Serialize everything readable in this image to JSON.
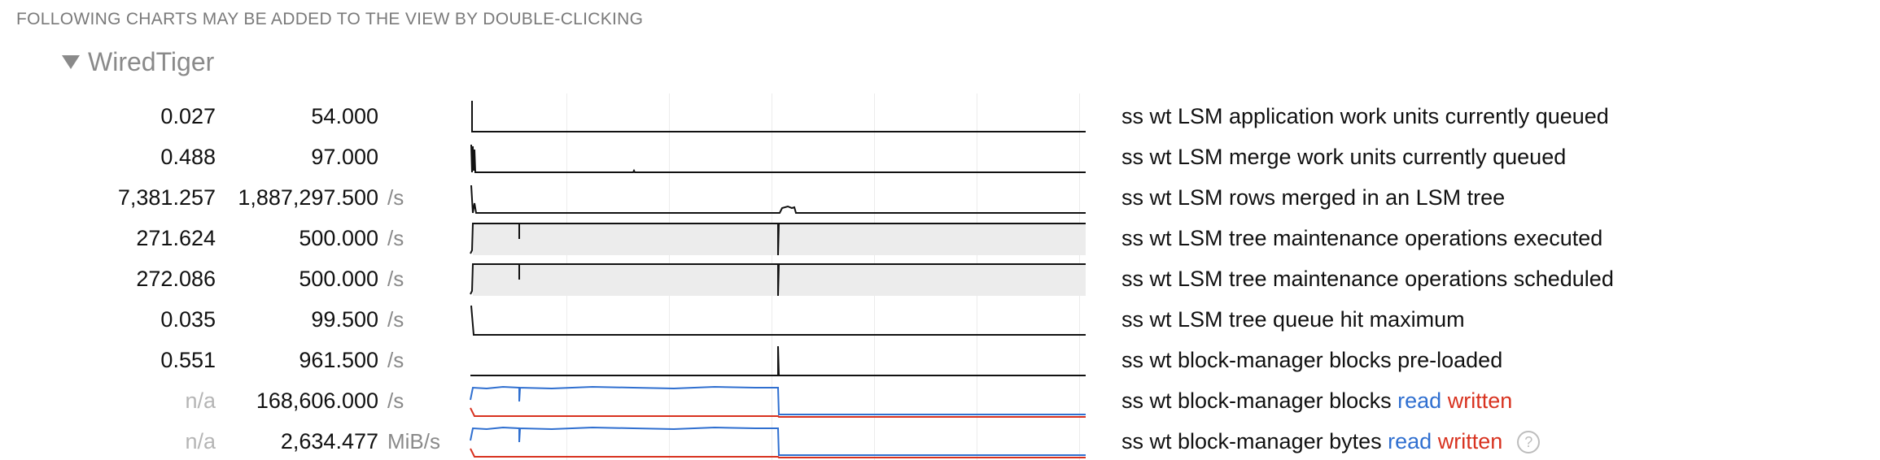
{
  "header": {
    "text": "FOLLOWING CHARTS MAY BE ADDED TO THE VIEW BY DOUBLE-CLICKING"
  },
  "group": {
    "title": "WiredTiger",
    "expanded": true
  },
  "colors": {
    "read": "#2f6fd0",
    "written": "#d8321f",
    "line": "#111111",
    "fill": "#ececec"
  },
  "rows": [
    {
      "val1": "0.027",
      "val2": "54.000",
      "unit": "",
      "label": "ss wt LSM application work units currently queued"
    },
    {
      "val1": "0.488",
      "val2": "97.000",
      "unit": "",
      "label": "ss wt LSM merge work units currently queued"
    },
    {
      "val1": "7,381.257",
      "val2": "1,887,297.500",
      "unit": "/s",
      "label": "ss wt LSM rows merged in an LSM tree"
    },
    {
      "val1": "271.624",
      "val2": "500.000",
      "unit": "/s",
      "label": "ss wt LSM tree maintenance operations executed"
    },
    {
      "val1": "272.086",
      "val2": "500.000",
      "unit": "/s",
      "label": "ss wt LSM tree maintenance operations scheduled"
    },
    {
      "val1": "0.035",
      "val2": "99.500",
      "unit": "/s",
      "label": "ss wt LSM tree queue hit maximum"
    },
    {
      "val1": "0.551",
      "val2": "961.500",
      "unit": "/s",
      "label": "ss wt block-manager blocks pre-loaded"
    },
    {
      "val1": "n/a",
      "val2": "168,606.000",
      "unit": "/s",
      "label": "ss wt block-manager blocks",
      "read": "read",
      "written": "written"
    },
    {
      "val1": "n/a",
      "val2": "2,634.477",
      "unit": "MiB/s",
      "label": "ss wt block-manager bytes",
      "read": "read",
      "written": "written",
      "help": "?"
    }
  ]
}
